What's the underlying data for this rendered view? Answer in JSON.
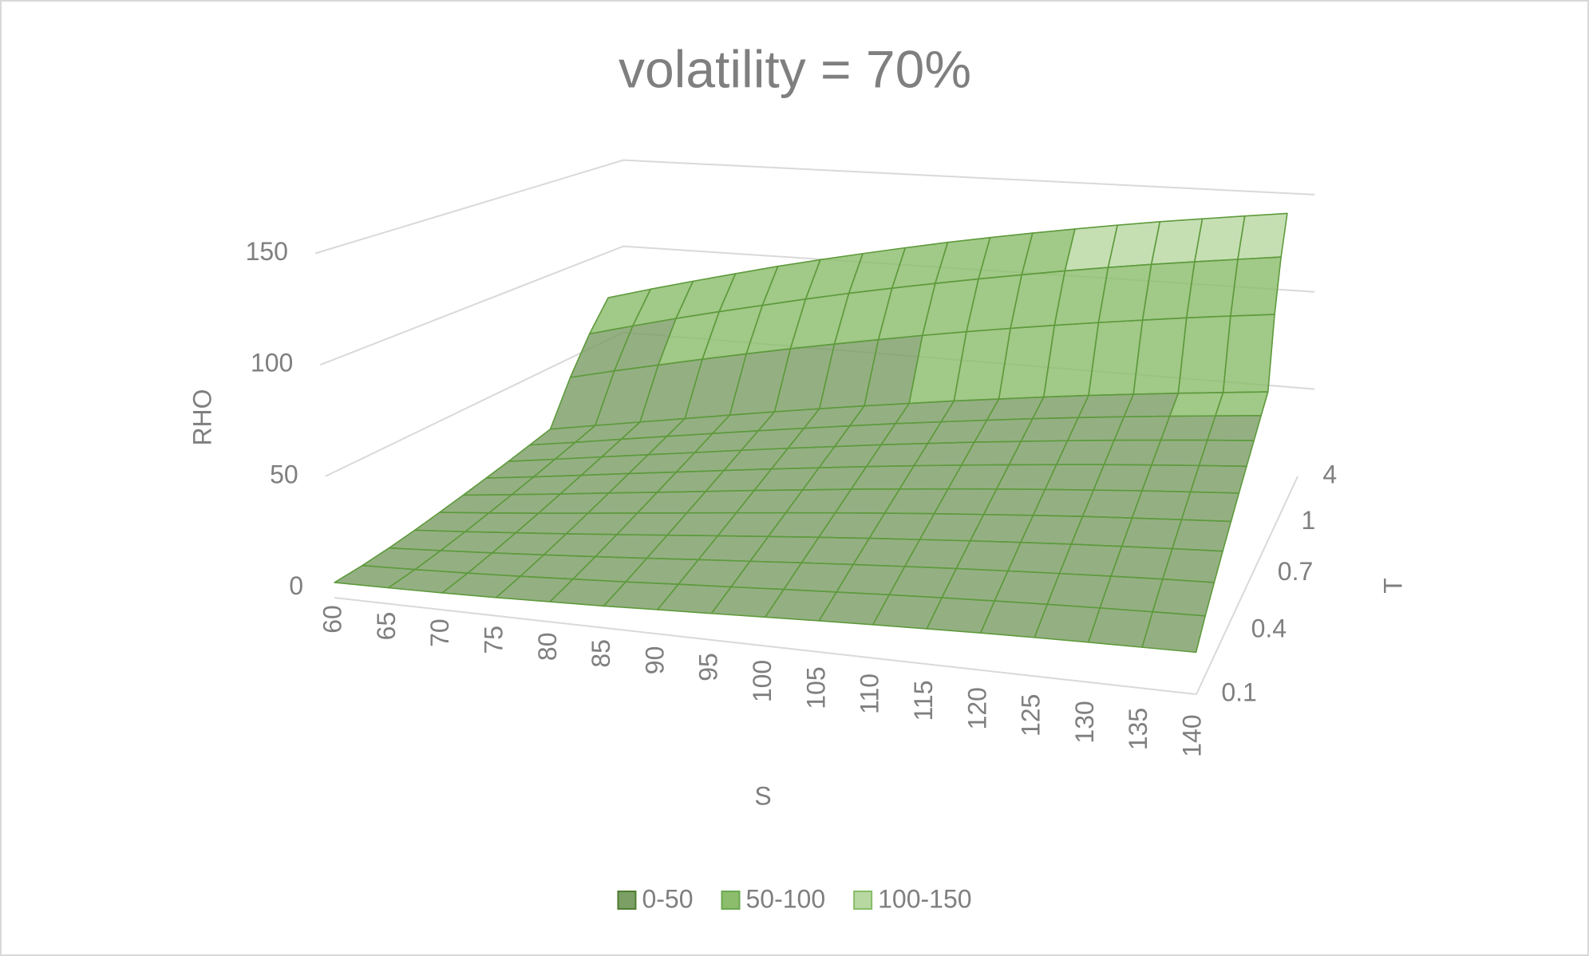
{
  "chart_data": {
    "type": "surface",
    "title": "volatility = 70%",
    "x_label": "S",
    "y_label": "T",
    "z_label": "RHO",
    "x": [
      60,
      65,
      70,
      75,
      80,
      85,
      90,
      95,
      100,
      105,
      110,
      115,
      120,
      125,
      130,
      135,
      140
    ],
    "y": [
      0.1,
      null,
      null,
      0.4,
      null,
      null,
      0.7,
      null,
      null,
      1,
      null,
      null,
      4
    ],
    "zlim": [
      0,
      150
    ],
    "zticks": [
      0,
      50,
      100,
      150
    ],
    "values": [
      [
        0.1,
        0.2,
        0.4,
        0.8,
        1.4,
        2.0,
        2.9,
        3.7,
        4.6,
        5.5,
        6.3,
        7.0,
        7.7,
        8.2,
        8.6,
        8.9,
        9.2
      ],
      [
        0.8,
        1.3,
        2.0,
        2.9,
        4.0,
        5.1,
        6.4,
        7.6,
        8.9,
        10.1,
        11.3,
        12.4,
        13.4,
        14.3,
        15.1,
        15.8,
        16.4
      ],
      [
        2.0,
        3.0,
        4.1,
        5.4,
        6.8,
        8.3,
        9.9,
        11.4,
        13.0,
        14.5,
        15.9,
        17.3,
        18.5,
        19.7,
        20.8,
        21.8,
        22.6
      ],
      [
        3.6,
        4.9,
        6.4,
        8.0,
        9.7,
        11.5,
        13.3,
        15.1,
        16.9,
        18.6,
        20.2,
        21.8,
        23.3,
        24.7,
        25.9,
        27.1,
        28.2
      ],
      [
        5.4,
        7.0,
        8.7,
        10.6,
        12.6,
        14.6,
        16.6,
        18.6,
        20.6,
        22.5,
        24.3,
        26.0,
        27.7,
        29.3,
        30.7,
        32.1,
        33.4
      ],
      [
        7.2,
        9.1,
        11.1,
        13.3,
        15.4,
        17.6,
        19.9,
        22.0,
        24.2,
        26.2,
        28.2,
        30.1,
        31.9,
        33.6,
        35.3,
        36.8,
        38.3
      ],
      [
        9.1,
        11.2,
        13.5,
        15.9,
        18.2,
        20.6,
        23.0,
        25.3,
        27.6,
        29.8,
        31.9,
        33.9,
        35.9,
        37.8,
        39.5,
        41.2,
        42.8
      ],
      [
        11.0,
        13.4,
        15.9,
        18.4,
        20.9,
        23.5,
        26.0,
        28.4,
        30.9,
        33.2,
        35.5,
        37.6,
        39.7,
        41.7,
        43.6,
        45.4,
        47.1
      ],
      [
        13.0,
        15.5,
        18.2,
        20.9,
        23.6,
        26.3,
        28.9,
        31.5,
        34.1,
        36.5,
        38.9,
        41.2,
        43.4,
        45.5,
        47.5,
        49.4,
        51.3
      ],
      [
        14.9,
        17.7,
        20.5,
        23.3,
        26.2,
        29.0,
        31.8,
        34.5,
        37.1,
        39.7,
        42.1,
        44.6,
        46.9,
        49.1,
        51.2,
        53.2,
        55.2
      ],
      [
        32.8,
        36.9,
        40.8,
        44.7,
        48.5,
        52.2,
        55.8,
        59.3,
        62.8,
        66.1,
        69.3,
        72.4,
        75.4,
        78.3,
        81.2,
        83.9,
        86.5
      ],
      [
        47.2,
        51.9,
        56.5,
        60.9,
        65.1,
        69.4,
        73.5,
        77.4,
        81.2,
        84.9,
        88.5,
        92.1,
        95.5,
        98.8,
        101.9,
        105.0,
        108.1
      ],
      [
        58.4,
        63.4,
        68.2,
        72.9,
        77.6,
        82.0,
        86.3,
        90.5,
        94.6,
        98.5,
        102.3,
        106.0,
        109.6,
        113.1,
        116.4,
        119.7,
        123.0
      ]
    ],
    "legend": [
      {
        "name": "0-50",
        "color": "#7c9f66",
        "edge": "#4f7d31"
      },
      {
        "name": "50-100",
        "color": "#8cbd6c",
        "edge": "#6aa84f"
      },
      {
        "name": "100-150",
        "color": "#b8d8a2",
        "edge": "#86bc66"
      }
    ],
    "grid": true
  }
}
